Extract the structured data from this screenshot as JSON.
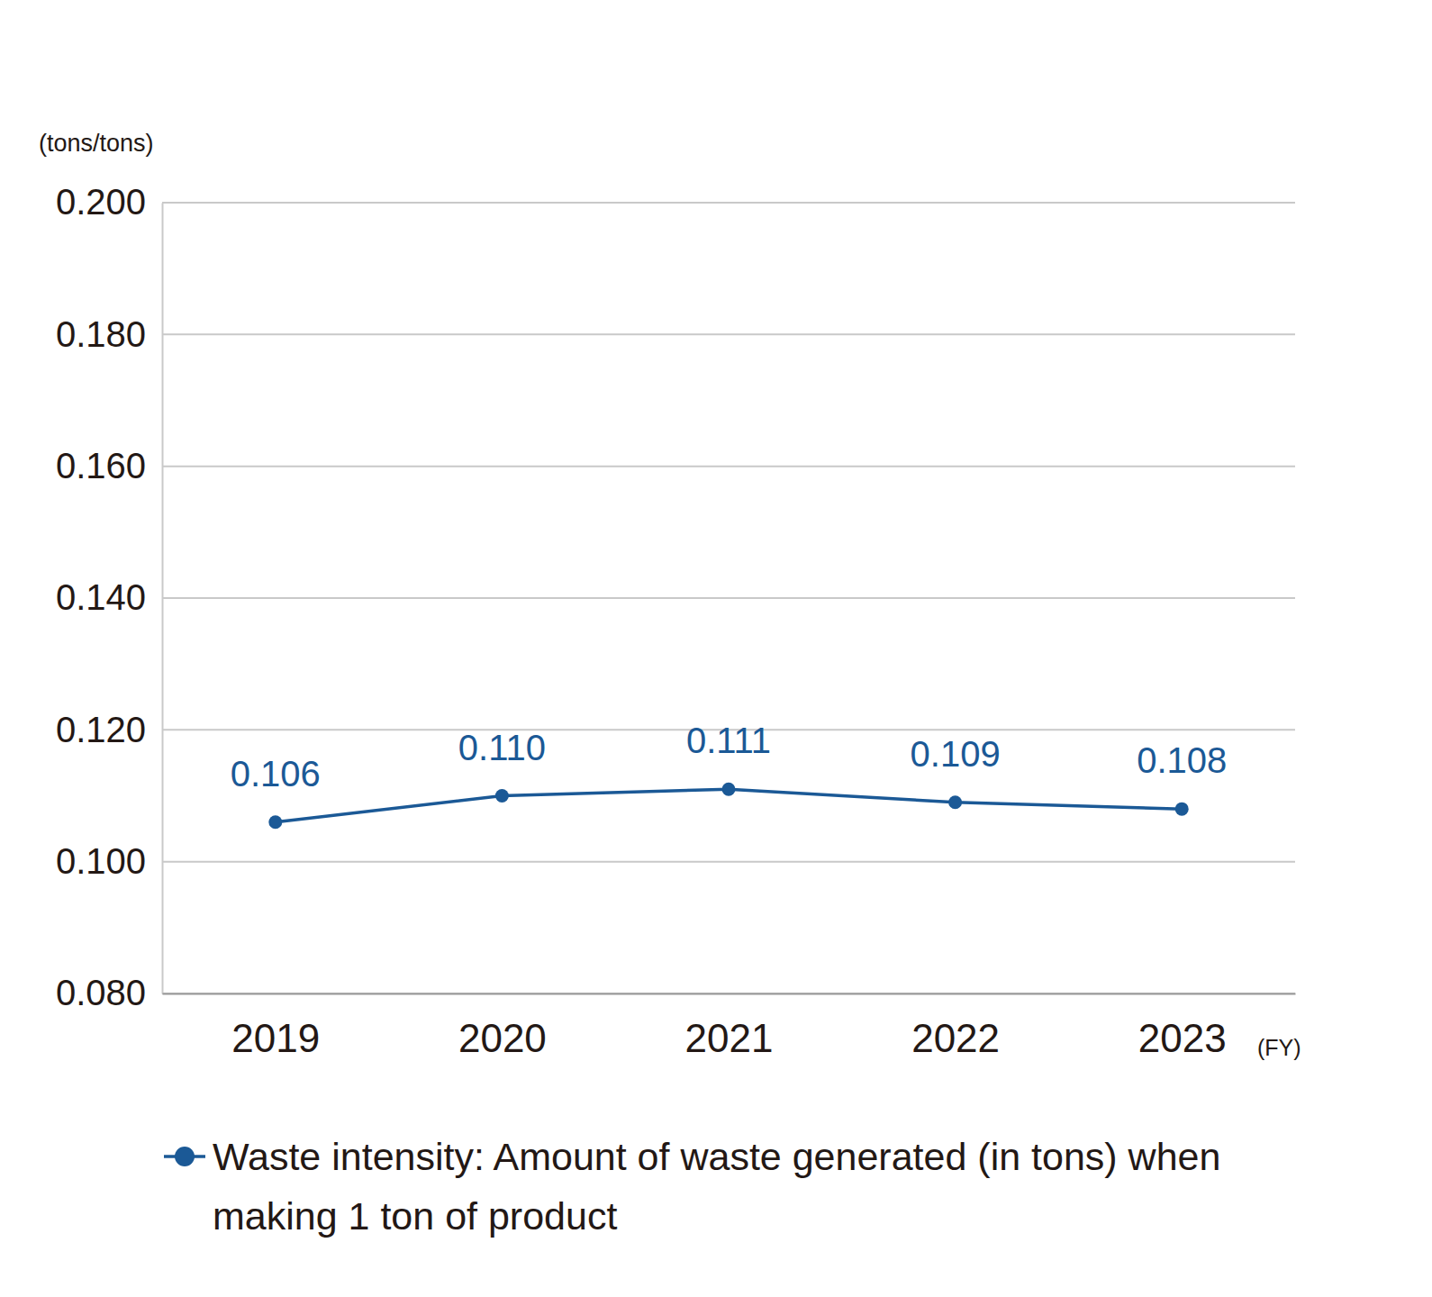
{
  "chart_data": {
    "type": "line",
    "y_label": "(tons/tons)",
    "x_label": "(FY)",
    "categories": [
      "2019",
      "2020",
      "2021",
      "2022",
      "2023"
    ],
    "series": [
      {
        "name": "Waste intensity: Amount of waste generated (in tons) when making 1 ton of product",
        "color": "#1b5996",
        "marker": "circle",
        "line_style": "solid",
        "values": [
          0.106,
          0.11,
          0.111,
          0.109,
          0.108
        ],
        "value_labels": [
          "0.106",
          "0.110",
          "0.111",
          "0.109",
          "0.108"
        ]
      }
    ],
    "ylim": [
      0.08,
      0.2
    ],
    "yticks": [
      {
        "value": 0.08,
        "label": "0.080"
      },
      {
        "value": 0.1,
        "label": "0.100"
      },
      {
        "value": 0.12,
        "label": "0.120"
      },
      {
        "value": 0.14,
        "label": "0.140"
      },
      {
        "value": 0.16,
        "label": "0.160"
      },
      {
        "value": 0.18,
        "label": "0.180"
      },
      {
        "value": 0.2,
        "label": "0.200"
      }
    ],
    "grid": true,
    "data_labels": true,
    "legend": "bottom"
  }
}
